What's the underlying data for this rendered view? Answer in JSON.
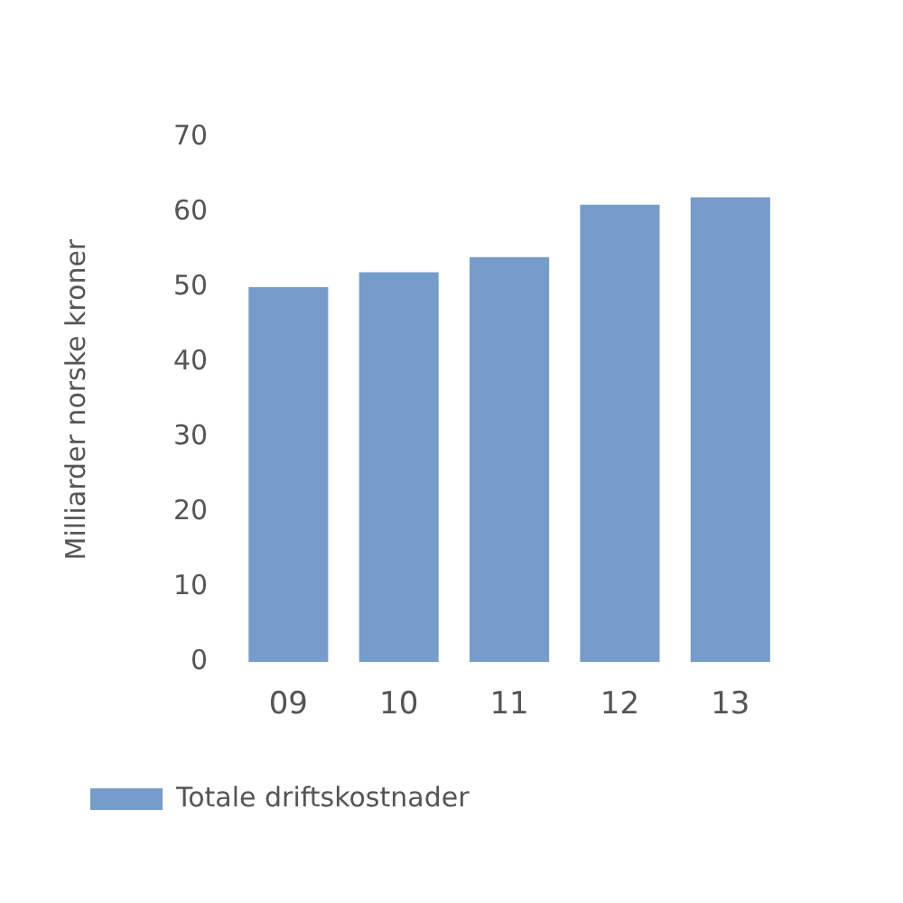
{
  "chart_data": {
    "type": "bar",
    "ylabel": "Milliarder norske kroner",
    "categories": [
      "09",
      "10",
      "11",
      "12",
      "13"
    ],
    "series": [
      {
        "name": "Totale driftskostnader",
        "color": "#759cca",
        "values": [
          50,
          52,
          54,
          61,
          62
        ]
      }
    ],
    "ylim": [
      0,
      70
    ],
    "yticks": [
      0,
      10,
      20,
      30,
      40,
      50,
      60,
      70
    ],
    "grid": false,
    "legend": "bottom"
  }
}
